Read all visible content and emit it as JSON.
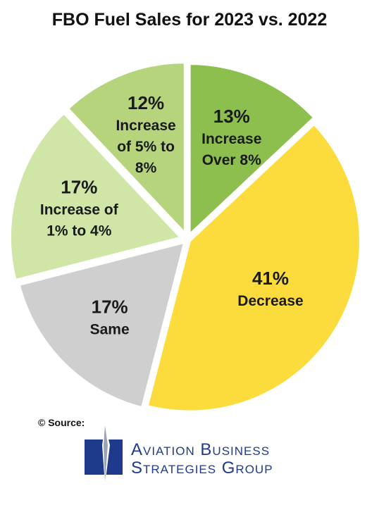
{
  "chart_data": {
    "type": "pie",
    "title": "FBO Fuel Sales for 2023 vs. 2022",
    "slices": [
      {
        "label_pct": "13%",
        "label": [
          "Increase",
          "Over 8%"
        ],
        "value": 13,
        "color": "#8cbf4e"
      },
      {
        "label_pct": "41%",
        "label": [
          "Decrease"
        ],
        "value": 41,
        "color": "#fcdc3c"
      },
      {
        "label_pct": "17%",
        "label": [
          "Same"
        ],
        "value": 17,
        "color": "#cfcfcf"
      },
      {
        "label_pct": "17%",
        "label": [
          "Increase of",
          "1% to 4%"
        ],
        "value": 17,
        "color": "#cfe6a6"
      },
      {
        "label_pct": "12%",
        "label": [
          "Increase",
          "of 5% to",
          "8%"
        ],
        "value": 12,
        "color": "#b5d47c"
      }
    ]
  },
  "source": {
    "label": "© Source:",
    "logo_line1": "Aviation Business",
    "logo_line2": "Strategies Group",
    "logo_color": "#1f3a8a"
  }
}
